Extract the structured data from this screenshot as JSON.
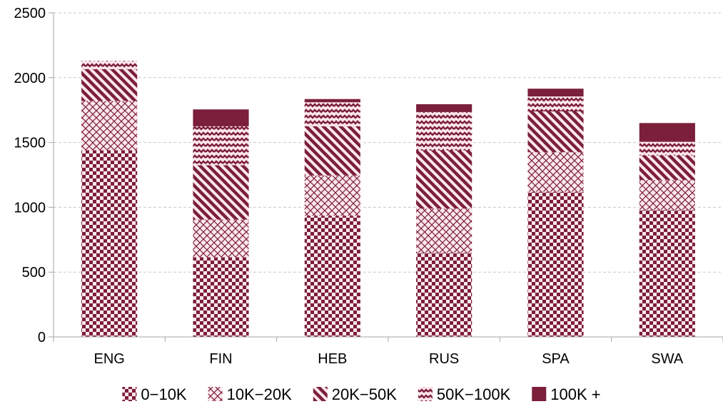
{
  "chart_data": {
    "type": "bar",
    "stacked": true,
    "categories": [
      "ENG",
      "FIN",
      "HEB",
      "RUS",
      "SPA",
      "SWA"
    ],
    "series": [
      {
        "name": "0−10K",
        "pattern": "checker",
        "values": [
          1440,
          615,
          935,
          650,
          1120,
          980
        ]
      },
      {
        "name": "10K−20K",
        "pattern": "diamond-grid",
        "values": [
          380,
          290,
          310,
          340,
          305,
          230
        ]
      },
      {
        "name": "20K−50K",
        "pattern": "diagonal-stripes",
        "values": [
          245,
          420,
          380,
          450,
          315,
          190
        ]
      },
      {
        "name": "50K−100K",
        "pattern": "waves",
        "values": [
          65,
          300,
          185,
          295,
          115,
          105
        ]
      },
      {
        "name": "100K +",
        "pattern": "solid",
        "values": [
          0,
          130,
          25,
          60,
          60,
          145
        ]
      }
    ],
    "ylim": [
      0,
      2500
    ],
    "yticks": [
      0,
      500,
      1000,
      1500,
      2000,
      2500
    ],
    "grid": "horizontal dashed",
    "legend_position": "bottom",
    "colors": {
      "primary": "#7b1f3a",
      "light": "#fbe7ec",
      "axis": "#a6a6a6",
      "grid": "#c8c8c8"
    }
  }
}
